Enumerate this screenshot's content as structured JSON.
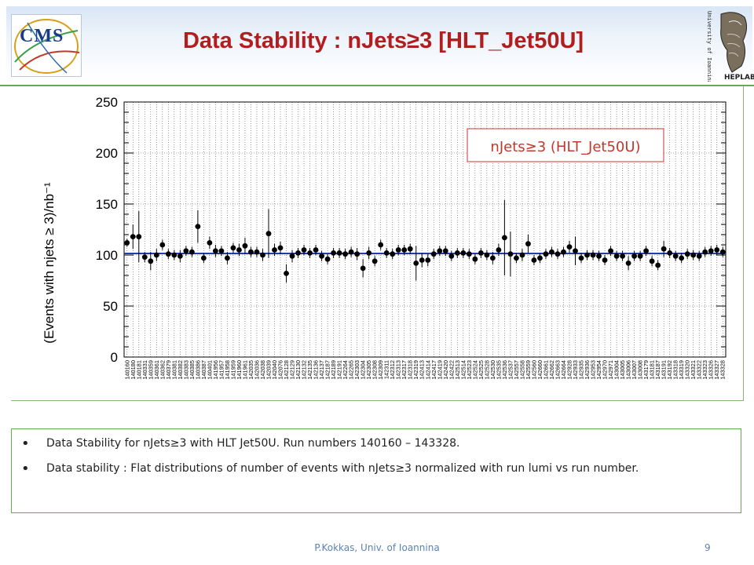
{
  "slide": {
    "title": "Data Stability : nJets≥3 [HLT_Jet50U]",
    "cms_logo_text": "CMS",
    "uni_logo_text": "University of Ioannina",
    "uni_logo_label": "HEPLAB",
    "bullets": [
      "Data Stability for nJets≥3 with HLT Jet50U. Run numbers 140160 – 143328.",
      "Data stability : Flat distributions of number of events with nJets≥3 normalized with run lumi vs run number."
    ],
    "footer_author": "P.Kokkas, Univ. of Ioannina",
    "footer_page": "9"
  },
  "colors": {
    "title": "#b01e1e",
    "accent_green": "#6aa84f",
    "fit_line": "#1f3fb0",
    "legend_border": "#c0392b",
    "points": "#000000"
  },
  "chart_data": {
    "type": "scatter",
    "ylabel": "(Events with njets ≥ 3)/nb⁻¹",
    "xlabel": "",
    "legend": "nJets≥3 (HLT_Jet50U)",
    "legend_position": "top-right",
    "ylim": [
      0,
      250
    ],
    "yticks": [
      0,
      50,
      100,
      150,
      200,
      250
    ],
    "grid": true,
    "fit_value": 101.5,
    "categories": [
      "140160",
      "140180",
      "140181",
      "140331",
      "140359",
      "140361",
      "140362",
      "140379",
      "140381",
      "140382",
      "140383",
      "140385",
      "140386",
      "140387",
      "140401",
      "141956",
      "141957",
      "141958",
      "141959",
      "141960",
      "141961",
      "142035",
      "142036",
      "142038",
      "142039",
      "142040",
      "142076",
      "142128",
      "142129",
      "142130",
      "142132",
      "142135",
      "142136",
      "142137",
      "142187",
      "142189",
      "142191",
      "142264",
      "142265",
      "142303",
      "142304",
      "142305",
      "142308",
      "142309",
      "142311",
      "142312",
      "142313",
      "142317",
      "142318",
      "142319",
      "142413",
      "142414",
      "142417",
      "142419",
      "142420",
      "142422",
      "142513",
      "142514",
      "142523",
      "142524",
      "142525",
      "142528",
      "142530",
      "142535",
      "142536",
      "142537",
      "142557",
      "142558",
      "142559",
      "142560",
      "142660",
      "142661",
      "142662",
      "142663",
      "142664",
      "142928",
      "142933",
      "142935",
      "142936",
      "142953",
      "142954",
      "142970",
      "142971",
      "143004",
      "143005",
      "143006",
      "143007",
      "143008",
      "143179",
      "143181",
      "143187",
      "143191",
      "143192",
      "143318",
      "143319",
      "143320",
      "143321",
      "143322",
      "143323",
      "143326",
      "143327",
      "143328"
    ],
    "values": [
      112,
      118,
      118,
      98,
      94,
      100,
      110,
      101,
      100,
      99,
      104,
      103,
      128,
      97,
      112,
      104,
      104,
      97,
      107,
      105,
      109,
      103,
      103,
      100,
      121,
      105,
      107,
      82,
      99,
      102,
      105,
      102,
      105,
      99,
      96,
      102,
      102,
      101,
      103,
      101,
      87,
      102,
      94,
      110,
      102,
      101,
      105,
      105,
      106,
      92,
      95,
      95,
      101,
      104,
      104,
      99,
      102,
      102,
      101,
      96,
      102,
      100,
      97,
      105,
      117,
      101,
      97,
      100,
      111,
      95,
      97,
      101,
      103,
      101,
      103,
      108,
      104,
      97,
      100,
      100,
      99,
      95,
      104,
      99,
      99,
      92,
      99,
      99,
      104,
      94,
      90,
      106,
      102,
      99,
      97,
      101,
      100,
      99,
      103,
      104,
      105,
      103
    ],
    "errors": [
      4,
      12,
      25,
      5,
      9,
      6,
      5,
      5,
      5,
      6,
      5,
      5,
      16,
      5,
      6,
      6,
      5,
      6,
      5,
      6,
      8,
      5,
      5,
      6,
      24,
      6,
      6,
      9,
      6,
      5,
      5,
      5,
      5,
      5,
      5,
      5,
      5,
      5,
      5,
      6,
      9,
      6,
      5,
      5,
      5,
      5,
      5,
      5,
      5,
      17,
      7,
      6,
      5,
      5,
      5,
      5,
      5,
      5,
      5,
      5,
      5,
      5,
      6,
      6,
      37,
      22,
      5,
      6,
      9,
      5,
      5,
      5,
      5,
      5,
      5,
      6,
      14,
      5,
      5,
      5,
      5,
      5,
      5,
      5,
      5,
      7,
      5,
      5,
      5,
      5,
      5,
      8,
      5,
      5,
      5,
      5,
      5,
      5,
      5,
      5,
      5,
      5
    ]
  }
}
